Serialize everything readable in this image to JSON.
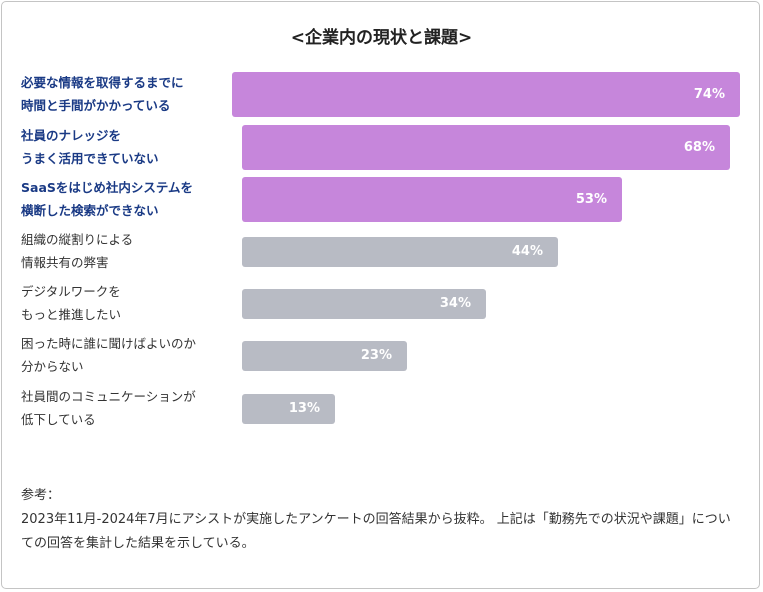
{
  "chart_data": {
    "type": "bar",
    "orientation": "horizontal",
    "title": "<企業内の現状と課題>",
    "xlim": [
      0,
      74
    ],
    "highlight_color": "#c686db",
    "default_color": "#b8bbc4",
    "categories": [
      [
        "必要な情報を取得するまでに",
        "時間と手間がかかっている"
      ],
      [
        "社員のナレッジを",
        "うまく活用できていない"
      ],
      [
        "SaaSをはじめ社内システムを",
        "横断した検索ができない"
      ],
      [
        "組織の縦割りによる",
        "情報共有の弊害"
      ],
      [
        "デジタルワークを",
        "もっと推進したい"
      ],
      [
        "困った時に誰に聞けばよいのか",
        "分からない"
      ],
      [
        "社員間のコミュニケーションが",
        "低下している"
      ]
    ],
    "values": [
      74,
      68,
      53,
      44,
      34,
      23,
      13
    ],
    "value_labels": [
      "74%",
      "68%",
      "53%",
      "44%",
      "34%",
      "23%",
      "13%"
    ],
    "highlighted": [
      true,
      true,
      true,
      false,
      false,
      false,
      false
    ]
  },
  "note": {
    "heading": "参考：",
    "text": "2023年11月-2024年7月にアシストが実施したアンケートの回答結果から抜粋。 上記は「勤務先での状況や課題」についての回答を集計した結果を示している。"
  }
}
